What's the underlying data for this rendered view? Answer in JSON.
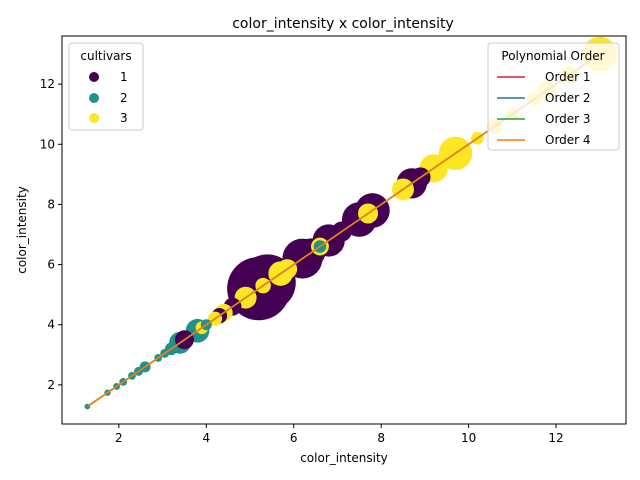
{
  "chart_data": {
    "type": "scatter",
    "title": "color_intensity x color_intensity",
    "xlabel": "color_intensity",
    "ylabel": "color_intensity",
    "xlim": [
      0.7,
      13.6
    ],
    "ylim": [
      0.7,
      13.6
    ],
    "x_ticks": [
      2,
      4,
      6,
      8,
      10,
      12
    ],
    "y_ticks": [
      2,
      4,
      6,
      8,
      10,
      12
    ],
    "grid": false,
    "cultivar_legend": {
      "title": "cultivars",
      "placement": "top-left",
      "entries": [
        {
          "label": "1",
          "color": "#440154"
        },
        {
          "label": "2",
          "color": "#21918c"
        },
        {
          "label": "3",
          "color": "#fde725"
        }
      ]
    },
    "fit_legend": {
      "title": "Polynomial Order",
      "placement": "top-right",
      "entries": [
        {
          "label": "Order 1",
          "color": "#d62728"
        },
        {
          "label": "Order 2",
          "color": "#1f77b4"
        },
        {
          "label": "Order 3",
          "color": "#2ca02c"
        },
        {
          "label": "Order 4",
          "color": "#ff7f0e"
        }
      ]
    },
    "fit_lines": [
      {
        "name": "Order 1",
        "color": "#d62728",
        "x": [
          1.28,
          13.0
        ],
        "y": [
          1.28,
          13.0
        ]
      },
      {
        "name": "Order 2",
        "color": "#1f77b4",
        "x": [
          1.28,
          13.0
        ],
        "y": [
          1.28,
          13.0
        ]
      },
      {
        "name": "Order 3",
        "color": "#2ca02c",
        "x": [
          1.28,
          13.0
        ],
        "y": [
          1.28,
          13.0
        ]
      },
      {
        "name": "Order 4",
        "color": "#ff7f0e",
        "x": [
          1.28,
          13.0
        ],
        "y": [
          1.28,
          13.0
        ]
      }
    ],
    "series": [
      {
        "cultivar": "1",
        "color": "#440154",
        "points": [
          {
            "x": 3.5,
            "y": 3.5,
            "size": 90
          },
          {
            "x": 4.3,
            "y": 4.3,
            "size": 60
          },
          {
            "x": 4.6,
            "y": 4.6,
            "size": 80
          },
          {
            "x": 4.8,
            "y": 4.8,
            "size": 150
          },
          {
            "x": 5.0,
            "y": 5.0,
            "size": 300
          },
          {
            "x": 5.2,
            "y": 5.2,
            "size": 1000
          },
          {
            "x": 5.4,
            "y": 5.4,
            "size": 800
          },
          {
            "x": 5.6,
            "y": 5.6,
            "size": 300
          },
          {
            "x": 6.2,
            "y": 6.2,
            "size": 400
          },
          {
            "x": 6.4,
            "y": 6.4,
            "size": 200
          },
          {
            "x": 6.8,
            "y": 6.8,
            "size": 260
          },
          {
            "x": 7.1,
            "y": 7.1,
            "size": 100
          },
          {
            "x": 7.3,
            "y": 7.3,
            "size": 90
          },
          {
            "x": 7.5,
            "y": 7.5,
            "size": 300
          },
          {
            "x": 7.8,
            "y": 7.8,
            "size": 300
          },
          {
            "x": 8.7,
            "y": 8.7,
            "size": 230
          },
          {
            "x": 8.9,
            "y": 8.9,
            "size": 100
          }
        ]
      },
      {
        "cultivar": "2",
        "color": "#21918c",
        "points": [
          {
            "x": 1.28,
            "y": 1.28,
            "size": 8
          },
          {
            "x": 1.74,
            "y": 1.74,
            "size": 10
          },
          {
            "x": 1.95,
            "y": 1.95,
            "size": 12
          },
          {
            "x": 2.1,
            "y": 2.1,
            "size": 15
          },
          {
            "x": 2.3,
            "y": 2.3,
            "size": 15
          },
          {
            "x": 2.45,
            "y": 2.45,
            "size": 20
          },
          {
            "x": 2.6,
            "y": 2.6,
            "size": 30
          },
          {
            "x": 2.9,
            "y": 2.9,
            "size": 15
          },
          {
            "x": 3.05,
            "y": 3.05,
            "size": 20
          },
          {
            "x": 3.2,
            "y": 3.2,
            "size": 40
          },
          {
            "x": 3.4,
            "y": 3.4,
            "size": 120
          },
          {
            "x": 3.8,
            "y": 3.8,
            "size": 140
          },
          {
            "x": 4.0,
            "y": 4.0,
            "size": 30
          },
          {
            "x": 6.6,
            "y": 6.6,
            "size": 40
          }
        ]
      },
      {
        "cultivar": "3",
        "color": "#fde725",
        "points": [
          {
            "x": 3.9,
            "y": 3.9,
            "size": 40
          },
          {
            "x": 4.2,
            "y": 4.2,
            "size": 50
          },
          {
            "x": 4.4,
            "y": 4.4,
            "size": 80
          },
          {
            "x": 4.9,
            "y": 4.9,
            "size": 120
          },
          {
            "x": 5.3,
            "y": 5.3,
            "size": 60
          },
          {
            "x": 5.7,
            "y": 5.7,
            "size": 150
          },
          {
            "x": 5.85,
            "y": 5.85,
            "size": 100
          },
          {
            "x": 6.6,
            "y": 6.6,
            "size": 80
          },
          {
            "x": 7.7,
            "y": 7.7,
            "size": 100
          },
          {
            "x": 8.5,
            "y": 8.5,
            "size": 120
          },
          {
            "x": 9.2,
            "y": 9.2,
            "size": 200
          },
          {
            "x": 9.7,
            "y": 9.7,
            "size": 280
          },
          {
            "x": 10.2,
            "y": 10.2,
            "size": 40
          },
          {
            "x": 10.6,
            "y": 10.6,
            "size": 60
          },
          {
            "x": 11.0,
            "y": 11.0,
            "size": 40
          },
          {
            "x": 11.5,
            "y": 11.5,
            "size": 50
          },
          {
            "x": 11.8,
            "y": 11.8,
            "size": 90
          },
          {
            "x": 12.3,
            "y": 12.3,
            "size": 80
          },
          {
            "x": 13.0,
            "y": 13.0,
            "size": 300
          }
        ]
      }
    ]
  }
}
